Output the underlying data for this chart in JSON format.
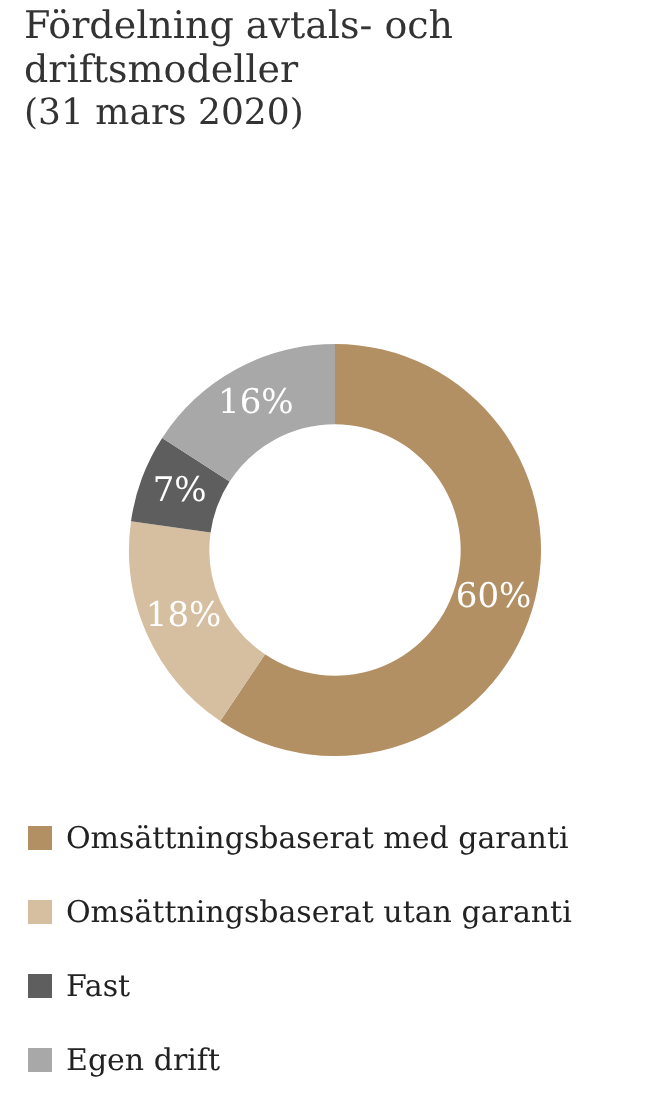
{
  "chart_data": {
    "type": "donut",
    "title": "Fördelning avtals- och driftsmodeller",
    "subtitle": "(31 mars 2020)",
    "categories": [
      "Omsättningsbaserat med garanti",
      "Omsättningsbaserat utan garanti",
      "Fast",
      "Egen drift"
    ],
    "values": [
      60,
      18,
      7,
      16
    ],
    "colors": [
      "#b39063",
      "#d6bfa0",
      "#5e5e5e",
      "#a8a8a8"
    ],
    "value_labels": [
      "60%",
      "18%",
      "7%",
      "16%"
    ],
    "legend": "bottom"
  }
}
